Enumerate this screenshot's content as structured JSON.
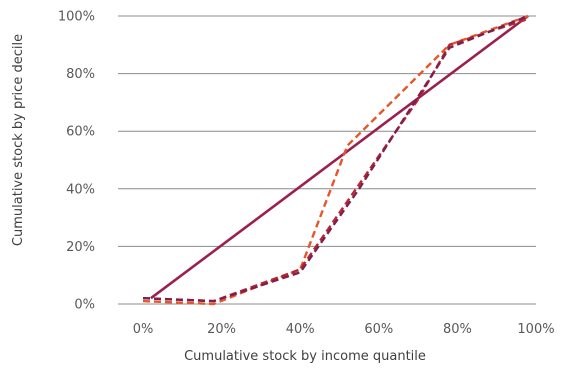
{
  "chart_data": {
    "type": "line",
    "title": "",
    "xlabel": "Cumulative stock by income quantile",
    "ylabel": "Cumulative stock by price decile",
    "xlim": [
      0,
      100
    ],
    "ylim": [
      0,
      100
    ],
    "x_ticks": [
      "0%",
      "20%",
      "40%",
      "60%",
      "80%",
      "100%"
    ],
    "y_ticks": [
      "0%",
      "20%",
      "40%",
      "60%",
      "80%",
      "100%"
    ],
    "grid": "horizontal",
    "legend": "none",
    "series": [
      {
        "color": "#9b2050",
        "dash": "solid",
        "x": [
          2,
          98
        ],
        "y": [
          2,
          100
        ]
      },
      {
        "color": "#e5562a",
        "dash": "dashed",
        "x": [
          0,
          18,
          40,
          52,
          78,
          98
        ],
        "y": [
          1,
          0,
          12,
          55,
          90,
          100
        ]
      },
      {
        "color": "#b8262f",
        "dash": "dashed",
        "x": [
          0,
          18,
          40,
          70,
          78,
          98
        ],
        "y": [
          2,
          1,
          12,
          71,
          90,
          99
        ]
      },
      {
        "color": "#7e1f4e",
        "dash": "dashed",
        "x": [
          0,
          18,
          40,
          55,
          78,
          98
        ],
        "y": [
          2,
          1,
          11,
          40,
          89,
          100
        ]
      }
    ]
  }
}
